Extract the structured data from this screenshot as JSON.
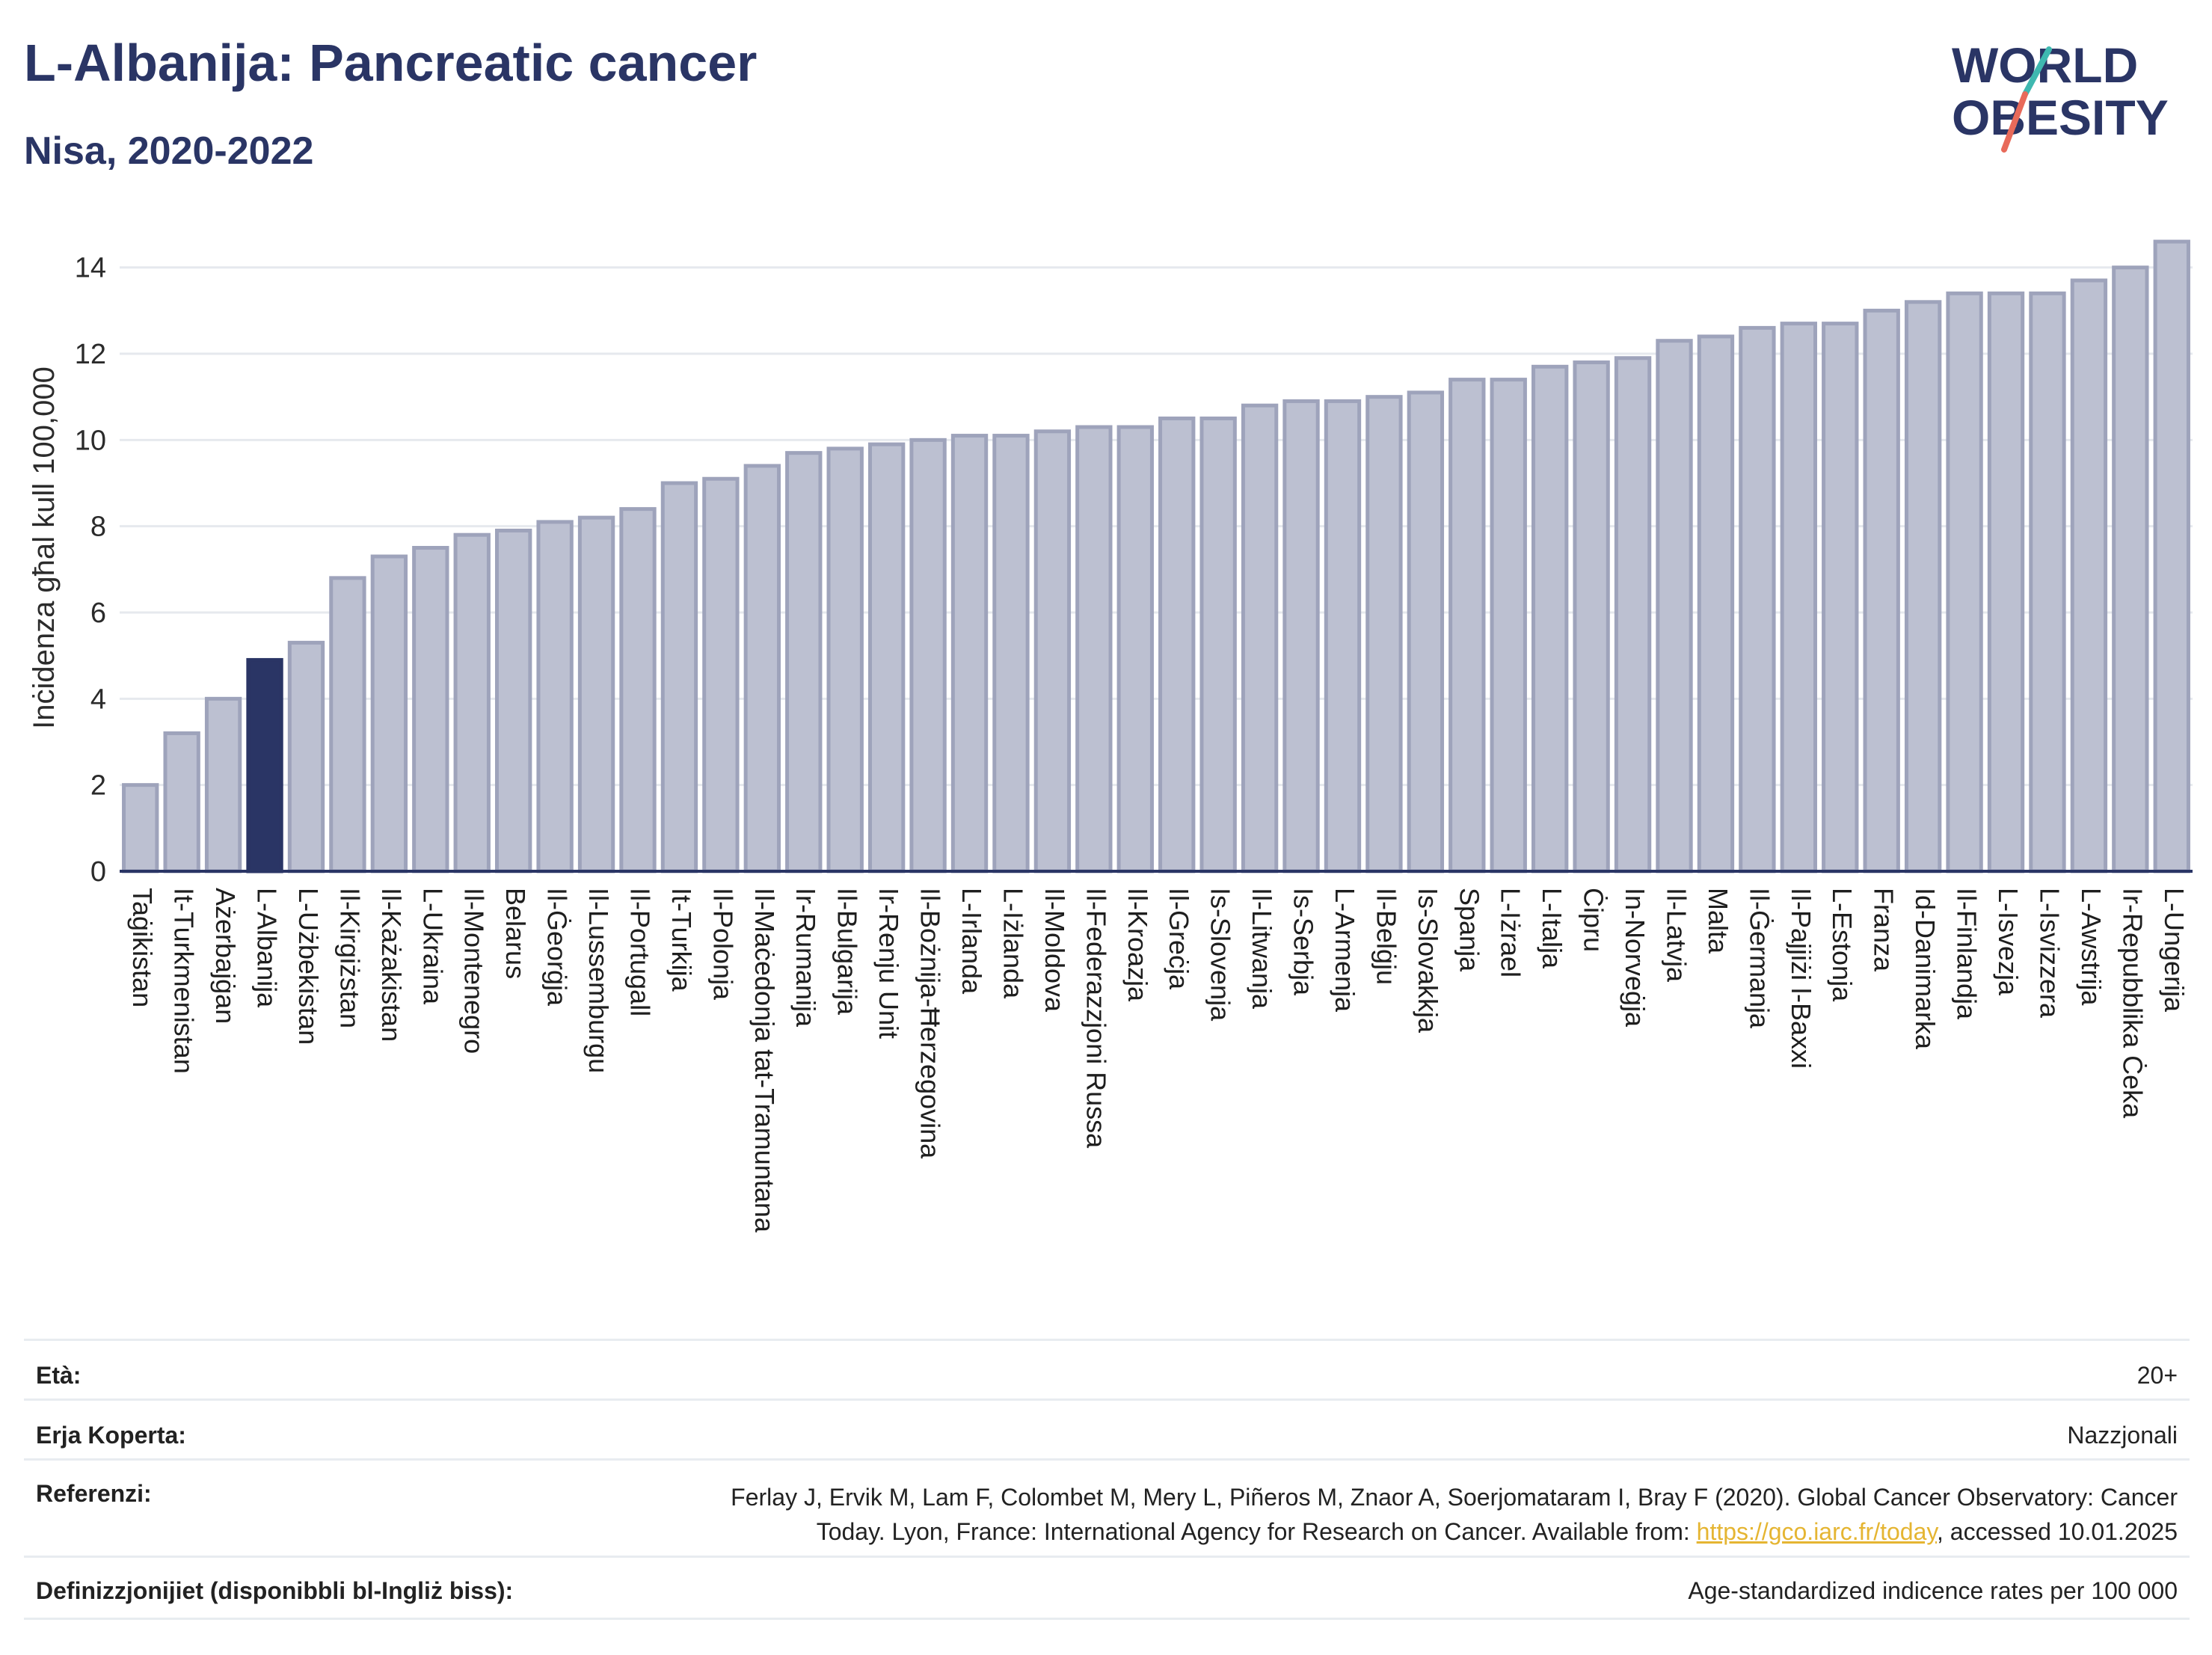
{
  "header": {
    "title": "L-Albanija: Pancreatic cancer",
    "subtitle": "Nisa, 2020-2022",
    "logo_text_1": "WORLD",
    "logo_text_2": "OBESITY"
  },
  "colors": {
    "bar": "#bcc0d1",
    "bar_border": "#9ea3bb",
    "highlight": "#2a3565",
    "axis": "#2a3565",
    "grid": "#e6e9ee",
    "logo_teal": "#3fb8b0",
    "logo_red": "#e86a5a"
  },
  "chart_data": {
    "type": "bar",
    "ylabel": "Inċidenza għal kull 100,000",
    "ylim": [
      0,
      15
    ],
    "yticks": [
      0,
      2,
      4,
      6,
      8,
      10,
      12,
      14
    ],
    "grid": true,
    "highlight": "L-Albanija",
    "categories": [
      "Taġikistan",
      "It-Turkmenistan",
      "Ażerbajġan",
      "L-Albanija",
      "L-Użbekistan",
      "Il-Kirgiżstan",
      "Il-Każakistan",
      "L-Ukraina",
      "Il-Montenegro",
      "Belarus",
      "Il-Ġeorġja",
      "Il-Lussemburgu",
      "Il-Portugall",
      "It-Turkija",
      "Il-Polonja",
      "Il-Maċedonja tat-Tramuntana",
      "Ir-Rumanija",
      "Il-Bulgarija",
      "Ir-Renju Unit",
      "Il-Bożnija-Ħerzegovina",
      "L-Irlanda",
      "L-Iżlanda",
      "Il-Moldova",
      "Il-Federazzjoni Russa",
      "Il-Kroazja",
      "Il-Greċja",
      "Is-Slovenja",
      "Il-Litwanja",
      "Is-Serbja",
      "L-Armenja",
      "Il-Belġju",
      "Is-Slovakkja",
      "Spanja",
      "L-Iżrael",
      "L-Italja",
      "Ċipru",
      "In-Norveġja",
      "Il-Latvja",
      "Malta",
      "Il-Ġermanja",
      "Il-Pajjiżi l-Baxxi",
      "L-Estonja",
      "Franza",
      "Id-Danimarka",
      "Il-Finlandja",
      "L-Isvezja",
      "L-Isvizzera",
      "L-Awstrija",
      "Ir-Repubblika Ċeka",
      "L-Ungerija"
    ],
    "values": [
      2.0,
      3.2,
      4.0,
      4.9,
      5.3,
      6.8,
      7.3,
      7.5,
      7.8,
      7.9,
      8.1,
      8.2,
      8.4,
      9.0,
      9.1,
      9.4,
      9.7,
      9.8,
      9.9,
      10.0,
      10.1,
      10.1,
      10.2,
      10.3,
      10.3,
      10.5,
      10.5,
      10.8,
      10.9,
      10.9,
      11.0,
      11.1,
      11.4,
      11.4,
      11.7,
      11.8,
      11.9,
      12.3,
      12.4,
      12.6,
      12.7,
      12.7,
      13.0,
      13.2,
      13.4,
      13.4,
      13.4,
      13.7,
      14.0,
      14.6
    ]
  },
  "meta": {
    "age_label": "Età:",
    "age_value": "20+",
    "coverage_label": "Erja Koperta:",
    "coverage_value": "Nazzjonali",
    "references_label": "Referenzi:",
    "references_line1": "Ferlay J, Ervik M, Lam F, Colombet M, Mery L, Piñeros M, Znaor A, Soerjomataram I, Bray F (2020). Global Cancer Observatory: Cancer",
    "references_line2_pre": "Today. Lyon, France: International Agency for Research on Cancer. Available from: ",
    "references_link": "https://gco.iarc.fr/today",
    "references_line2_post": ", accessed 10.01.2025",
    "definitions_label": "Definizzjonijiet (disponibbli bl-Ingliż biss):",
    "definitions_value": "Age-standardized indicence rates per 100 000"
  }
}
